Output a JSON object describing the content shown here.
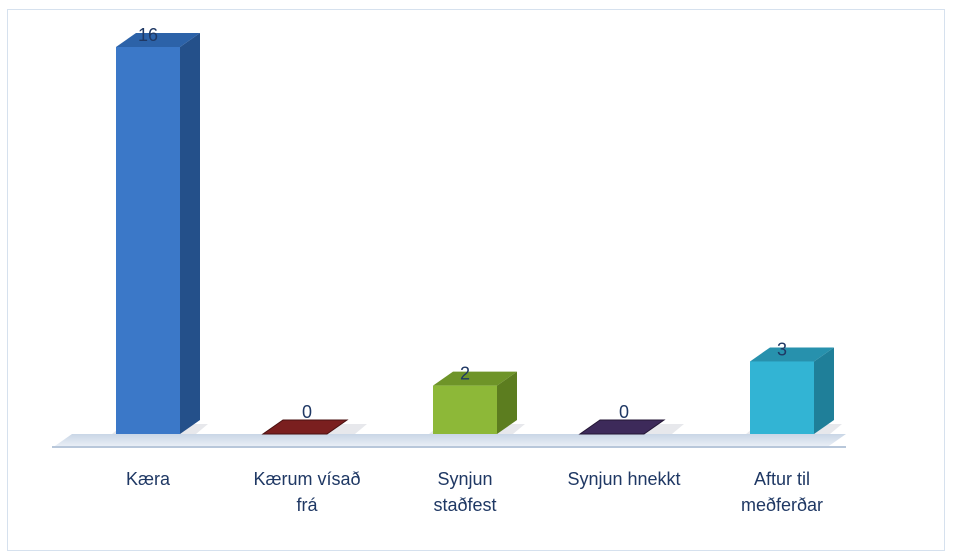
{
  "chart_data": {
    "type": "bar",
    "style": "3d-column",
    "categories": [
      [
        "Kæra"
      ],
      [
        "Kærum vísað",
        "frá"
      ],
      [
        "Synjun",
        "staðfest"
      ],
      [
        "Synjun hnekkt"
      ],
      [
        "Aftur til",
        "meðferðar"
      ]
    ],
    "values": [
      16,
      0,
      2,
      0,
      3
    ],
    "colors": [
      "#3b78c8",
      "#7a1f1f",
      "#8db838",
      "#3d2a5a",
      "#32b4d4"
    ],
    "dark_colors": [
      "#24508a",
      "#4a1010",
      "#5c7d1f",
      "#231634",
      "#1f7f99"
    ],
    "top_colors": [
      "#2c62a8",
      "#5a1616",
      "#6e9428",
      "#2d1f45",
      "#2791ad"
    ],
    "ylim": [
      0,
      16
    ],
    "grid": false,
    "legend": "none",
    "title": "",
    "xlabel": "",
    "ylabel": ""
  }
}
